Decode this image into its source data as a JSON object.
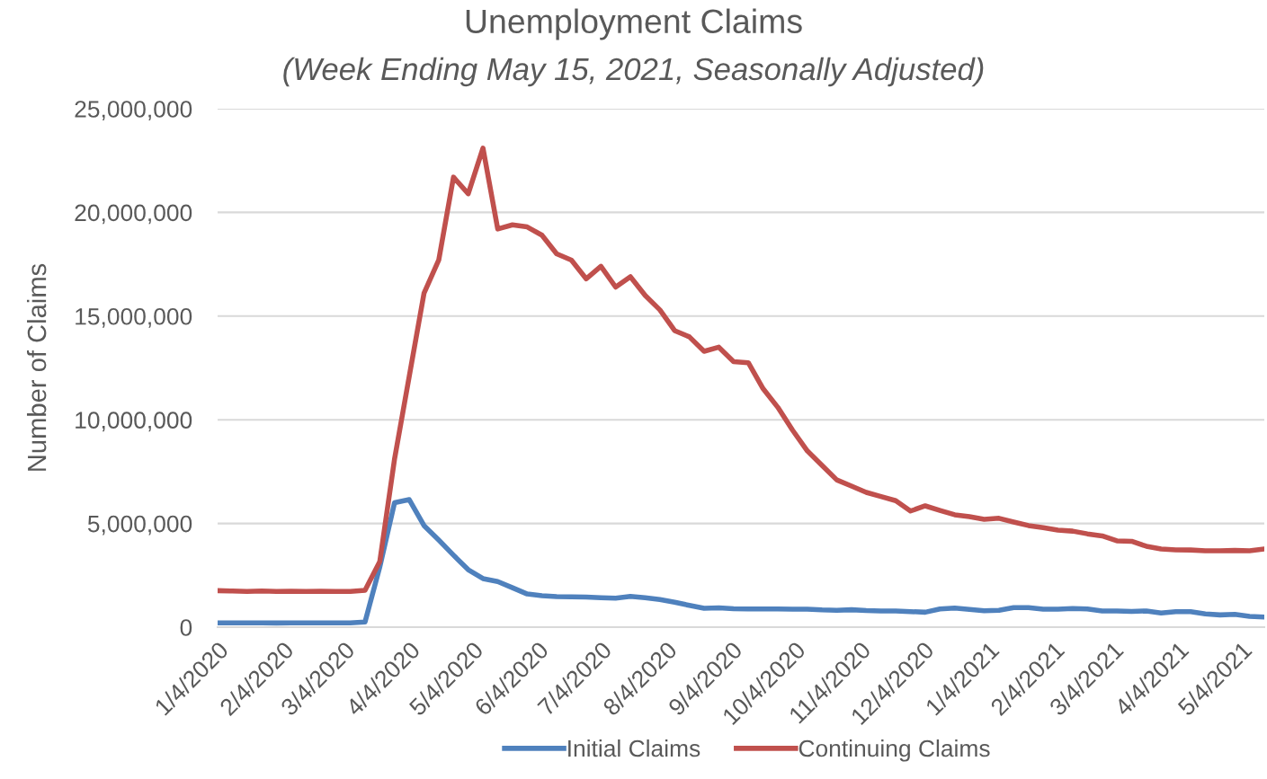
{
  "chart_data": {
    "type": "line",
    "title": "Unemployment Claims",
    "subtitle": "(Week Ending May 15, 2021, Seasonally Adjusted)",
    "ylabel": "Number of Claims",
    "x": [
      "2020-01-04",
      "2020-01-11",
      "2020-01-18",
      "2020-01-25",
      "2020-02-01",
      "2020-02-08",
      "2020-02-15",
      "2020-02-22",
      "2020-02-29",
      "2020-03-07",
      "2020-03-14",
      "2020-03-21",
      "2020-03-28",
      "2020-04-04",
      "2020-04-11",
      "2020-04-18",
      "2020-04-25",
      "2020-05-02",
      "2020-05-09",
      "2020-05-16",
      "2020-05-23",
      "2020-05-30",
      "2020-06-06",
      "2020-06-13",
      "2020-06-20",
      "2020-06-27",
      "2020-07-04",
      "2020-07-11",
      "2020-07-18",
      "2020-07-25",
      "2020-08-01",
      "2020-08-08",
      "2020-08-15",
      "2020-08-22",
      "2020-08-29",
      "2020-09-05",
      "2020-09-12",
      "2020-09-19",
      "2020-09-26",
      "2020-10-03",
      "2020-10-10",
      "2020-10-17",
      "2020-10-24",
      "2020-10-31",
      "2020-11-07",
      "2020-11-14",
      "2020-11-21",
      "2020-11-28",
      "2020-12-05",
      "2020-12-12",
      "2020-12-19",
      "2020-12-26",
      "2021-01-02",
      "2021-01-09",
      "2021-01-16",
      "2021-01-23",
      "2021-01-30",
      "2021-02-06",
      "2021-02-13",
      "2021-02-20",
      "2021-02-27",
      "2021-03-06",
      "2021-03-13",
      "2021-03-20",
      "2021-03-27",
      "2021-04-03",
      "2021-04-10",
      "2021-04-17",
      "2021-04-24",
      "2021-05-01",
      "2021-05-08",
      "2021-05-15"
    ],
    "series": [
      {
        "name": "Initial Claims",
        "color": "#4f81bd",
        "values": [
          210000,
          210000,
          210000,
          210000,
          200000,
          210000,
          210000,
          210000,
          210000,
          210000,
          250000,
          2900000,
          6000000,
          6150000,
          4900000,
          4200000,
          3470000,
          2770000,
          2340000,
          2200000,
          1900000,
          1600000,
          1520000,
          1470000,
          1460000,
          1450000,
          1420000,
          1400000,
          1480000,
          1420000,
          1330000,
          1200000,
          1050000,
          910000,
          930000,
          890000,
          880000,
          880000,
          880000,
          870000,
          870000,
          830000,
          810000,
          840000,
          800000,
          780000,
          780000,
          750000,
          720000,
          880000,
          920000,
          860000,
          790000,
          810000,
          940000,
          940000,
          870000,
          870000,
          900000,
          880000,
          780000,
          780000,
          760000,
          780000,
          680000,
          750000,
          750000,
          640000,
          590000,
          620000,
          520000,
          490000
        ]
      },
      {
        "name": "Continuing Claims",
        "color": "#c0504d",
        "values": [
          1760000,
          1740000,
          1720000,
          1740000,
          1720000,
          1730000,
          1720000,
          1730000,
          1720000,
          1720000,
          1780000,
          3160000,
          8100000,
          12100000,
          16100000,
          17700000,
          21700000,
          20900000,
          23100000,
          19200000,
          19400000,
          19300000,
          18900000,
          18000000,
          17700000,
          16800000,
          17400000,
          16400000,
          16900000,
          16000000,
          15300000,
          14300000,
          14000000,
          13300000,
          13500000,
          12800000,
          12750000,
          11500000,
          10600000,
          9500000,
          8500000,
          7800000,
          7100000,
          6800000,
          6500000,
          6300000,
          6100000,
          5600000,
          5850000,
          5630000,
          5420000,
          5330000,
          5200000,
          5250000,
          5070000,
          4900000,
          4800000,
          4680000,
          4630000,
          4500000,
          4400000,
          4160000,
          4140000,
          3900000,
          3770000,
          3730000,
          3720000,
          3680000,
          3680000,
          3700000,
          3680000,
          3770000
        ]
      }
    ],
    "xlim": [
      "2020-01-04",
      "2021-05-15"
    ],
    "xticks": [
      {
        "value": "2020-01-04",
        "label": "1/4/2020"
      },
      {
        "value": "2020-02-04",
        "label": "2/4/2020"
      },
      {
        "value": "2020-03-04",
        "label": "3/4/2020"
      },
      {
        "value": "2020-04-04",
        "label": "4/4/2020"
      },
      {
        "value": "2020-05-04",
        "label": "5/4/2020"
      },
      {
        "value": "2020-06-04",
        "label": "6/4/2020"
      },
      {
        "value": "2020-07-04",
        "label": "7/4/2020"
      },
      {
        "value": "2020-08-04",
        "label": "8/4/2020"
      },
      {
        "value": "2020-09-04",
        "label": "9/4/2020"
      },
      {
        "value": "2020-10-04",
        "label": "10/4/2020"
      },
      {
        "value": "2020-11-04",
        "label": "11/4/2020"
      },
      {
        "value": "2020-12-04",
        "label": "12/4/2020"
      },
      {
        "value": "2021-01-04",
        "label": "1/4/2021"
      },
      {
        "value": "2021-02-04",
        "label": "2/4/2021"
      },
      {
        "value": "2021-03-04",
        "label": "3/4/2021"
      },
      {
        "value": "2021-04-04",
        "label": "4/4/2021"
      },
      {
        "value": "2021-05-04",
        "label": "5/4/2021"
      }
    ],
    "ylim": [
      0,
      25000000
    ],
    "yticks": [
      {
        "value": 0,
        "label": "0"
      },
      {
        "value": 5000000,
        "label": "5,000,000"
      },
      {
        "value": 10000000,
        "label": "10,000,000"
      },
      {
        "value": 15000000,
        "label": "15,000,000"
      },
      {
        "value": 20000000,
        "label": "20,000,000"
      },
      {
        "value": 25000000,
        "label": "25,000,000"
      }
    ],
    "grid": "y",
    "legend": "bottom",
    "marker": "none",
    "line_style": "solid"
  }
}
